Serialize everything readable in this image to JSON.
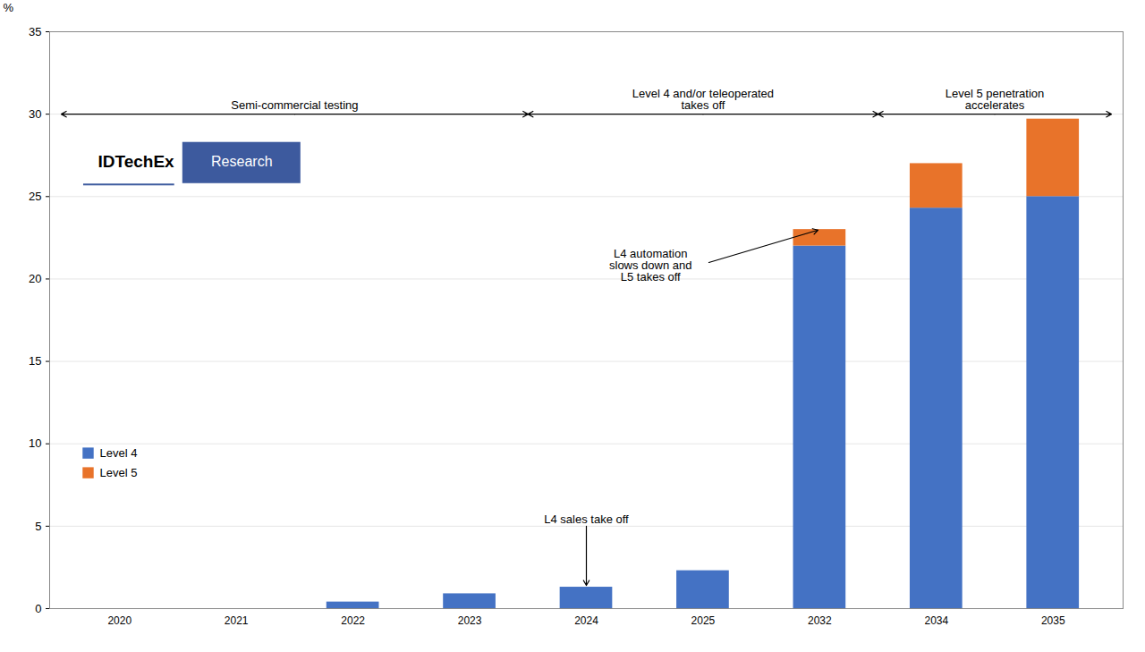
{
  "chart_data": {
    "type": "bar",
    "stacked": true,
    "categories": [
      "2020",
      "2021",
      "2022",
      "2023",
      "2024",
      "2025",
      "2032",
      "2034",
      "2035"
    ],
    "series": [
      {
        "name": "Level 4",
        "color": "#4472C4",
        "values": [
          0,
          0,
          0.4,
          0.9,
          1.3,
          2.3,
          22.0,
          24.3,
          25.0
        ]
      },
      {
        "name": "Level 5",
        "color": "#E8732A",
        "values": [
          0,
          0,
          0,
          0,
          0,
          0,
          1.0,
          2.7,
          4.7
        ]
      }
    ],
    "ylabel": "%",
    "ylim": [
      0,
      35
    ],
    "yticks": [
      0,
      5,
      10,
      15,
      20,
      25,
      30,
      35
    ],
    "grid": true,
    "legend": "lower left",
    "phase_labels": [
      "Semi-commercial testing",
      "Level 4 and/or teleoperated\ntakes off",
      "Level 5 penetration\naccelerates"
    ],
    "annotations": [
      "L4 automation\nslows down and\nL5 takes off",
      "L4 sales take off"
    ],
    "logo": {
      "text": "IDTechEx",
      "box_text": "Research",
      "color": "#3D5A9E"
    }
  }
}
